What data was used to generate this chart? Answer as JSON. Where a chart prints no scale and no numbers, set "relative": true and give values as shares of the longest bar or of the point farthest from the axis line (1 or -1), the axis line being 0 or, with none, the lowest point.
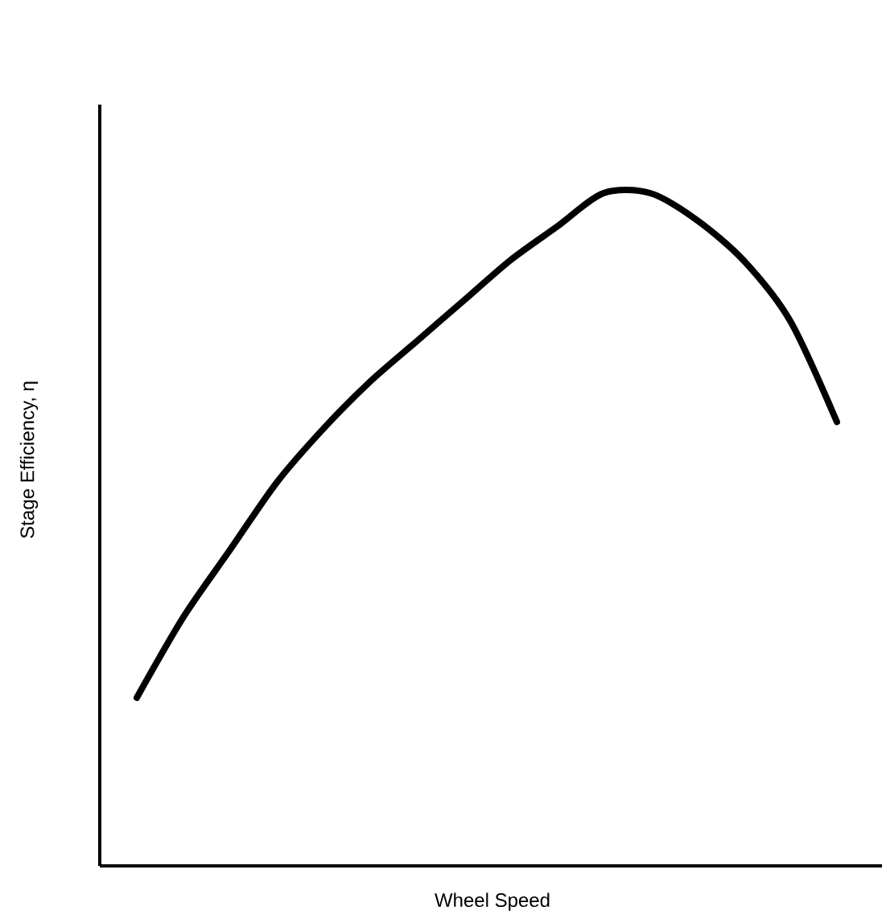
{
  "chart_data": {
    "type": "line",
    "relative": true,
    "xlabel": "Wheel Speed",
    "ylabel": "Stage Efficiency, η",
    "color": "#000000",
    "marker": "none",
    "categories": [
      null,
      null,
      null,
      null,
      null,
      null,
      null,
      null,
      null,
      null,
      null,
      null,
      null,
      null,
      null,
      null
    ],
    "values": [
      0.25,
      0.37,
      0.47,
      0.57,
      0.65,
      0.72,
      0.78,
      0.84,
      0.9,
      0.95,
      1.0,
      1.0,
      0.96,
      0.9,
      0.81,
      0.66
    ]
  }
}
